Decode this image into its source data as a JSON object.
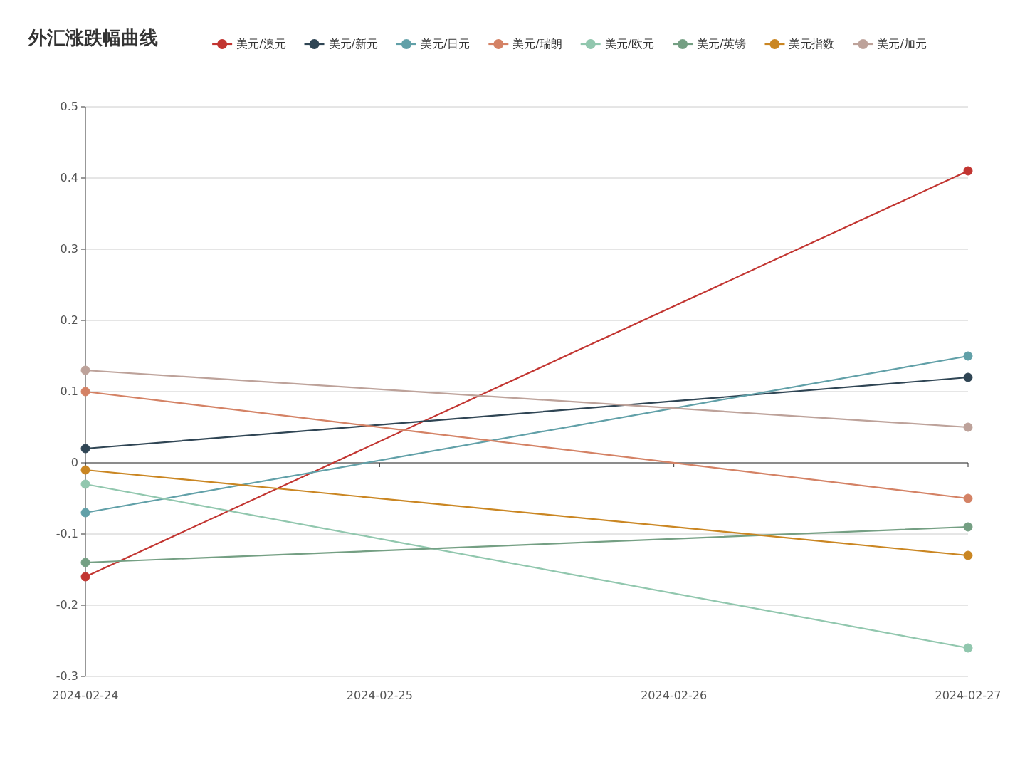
{
  "chart_data": {
    "type": "line",
    "title": "外汇涨跌幅曲线",
    "x": [
      "2024-02-24",
      "2024-02-27"
    ],
    "xlim": [
      "2024-02-24",
      "2024-02-27"
    ],
    "xticks": [
      "2024-02-24",
      "2024-02-25",
      "2024-02-26",
      "2024-02-27"
    ],
    "ylim": [
      -0.3,
      0.5
    ],
    "yticks": [
      -0.3,
      -0.2,
      -0.1,
      0,
      0.1,
      0.2,
      0.3,
      0.4,
      0.5
    ],
    "grid": "y",
    "legend": "top",
    "marker": "circle",
    "series": [
      {
        "name": "美元/澳元",
        "color": "#c23531",
        "values": [
          -0.16,
          0.41
        ]
      },
      {
        "name": "美元/新元",
        "color": "#2f4554",
        "values": [
          0.02,
          0.12
        ]
      },
      {
        "name": "美元/日元",
        "color": "#61a0a8",
        "values": [
          -0.07,
          0.15
        ]
      },
      {
        "name": "美元/瑞朗",
        "color": "#d48265",
        "values": [
          0.1,
          -0.05
        ]
      },
      {
        "name": "美元/欧元",
        "color": "#91c7ae",
        "values": [
          -0.03,
          -0.26
        ]
      },
      {
        "name": "美元/英镑",
        "color": "#749f83",
        "values": [
          -0.14,
          -0.09
        ]
      },
      {
        "name": "美元指数",
        "color": "#ca8622",
        "values": [
          -0.01,
          -0.13
        ]
      },
      {
        "name": "美元/加元",
        "color": "#bda29a",
        "values": [
          0.13,
          0.05
        ]
      }
    ]
  }
}
